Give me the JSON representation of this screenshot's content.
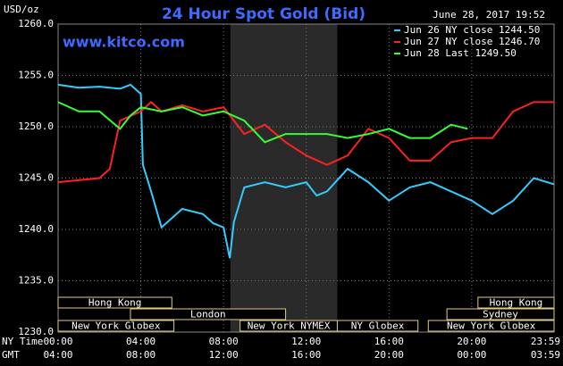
{
  "chart_data": {
    "type": "line",
    "title": "24 Hour Spot Gold (Bid)",
    "subtitle": "www.kitco.com",
    "timestamp": "June 28, 2017 19:52",
    "y_label": "USD/oz",
    "x_label": "NY Time",
    "x2_label": "GMT",
    "background": "#000000",
    "grid": true,
    "legend": "top-right",
    "ylim": [
      1230,
      1260
    ],
    "yticks": [
      {
        "value": 1230,
        "label": "1230.0"
      },
      {
        "value": 1235,
        "label": "1235.0"
      },
      {
        "value": 1240,
        "label": "1240.0"
      },
      {
        "value": 1245,
        "label": "1245.0"
      },
      {
        "value": 1250,
        "label": "1250.0"
      },
      {
        "value": 1255,
        "label": "1255.0"
      },
      {
        "value": 1260,
        "label": "1260.0"
      }
    ],
    "xlim": [
      0,
      23.98
    ],
    "xticks": [
      {
        "value": 0,
        "label": "00:00"
      },
      {
        "value": 4,
        "label": "04:00"
      },
      {
        "value": 8,
        "label": "08:00"
      },
      {
        "value": 12,
        "label": "12:00"
      },
      {
        "value": 16,
        "label": "16:00"
      },
      {
        "value": 20,
        "label": "20:00"
      },
      {
        "value": 23.98,
        "label": "23:59"
      }
    ],
    "x2ticks": [
      {
        "value": 0,
        "label": "04:00"
      },
      {
        "value": 4,
        "label": "08:00"
      },
      {
        "value": 8,
        "label": "12:00"
      },
      {
        "value": 12,
        "label": "16:00"
      },
      {
        "value": 16,
        "label": "20:00"
      },
      {
        "value": 20,
        "label": "00:00"
      },
      {
        "value": 23.98,
        "label": "03:59"
      }
    ],
    "highlight_range": [
      8.33,
      13.5
    ],
    "sessions": [
      [
        {
          "label": "Hong Kong",
          "start": 0,
          "end": 5.5
        },
        {
          "label": "Hong Kong",
          "start": 20.3,
          "end": 23.98
        }
      ],
      [
        {
          "label": "London",
          "start": 3.5,
          "end": 11.0
        },
        {
          "label": "Sydney",
          "start": 18.8,
          "end": 23.98
        }
      ],
      [
        {
          "label": "New York Globex",
          "start": 0,
          "end": 5.6
        },
        {
          "label": "New York NYMEX",
          "start": 8.8,
          "end": 13.5
        },
        {
          "label": "NY Globex",
          "start": 13.5,
          "end": 17.4
        },
        {
          "label": "New York Globex",
          "start": 17.9,
          "end": 23.98
        }
      ]
    ],
    "series": [
      {
        "name": "Jun 26 NY close 1244.50",
        "color": "#33ccff",
        "x": [
          0,
          1,
          2,
          3,
          3.5,
          4,
          4.1,
          4.5,
          5,
          5.5,
          6,
          7,
          7.5,
          8,
          8.3,
          8.5,
          9,
          10,
          11,
          12,
          12.5,
          13,
          14,
          15,
          16,
          17,
          18,
          19,
          20,
          21,
          22,
          23,
          23.98
        ],
        "values": [
          1254.1,
          1253.8,
          1253.9,
          1253.7,
          1254.1,
          1253.2,
          1246.3,
          1243.7,
          1240.2,
          1241.1,
          1242.0,
          1241.5,
          1240.6,
          1240.2,
          1237.2,
          1240.7,
          1244.1,
          1244.6,
          1244.1,
          1244.6,
          1243.3,
          1243.7,
          1245.9,
          1244.6,
          1242.8,
          1244.1,
          1244.6,
          1243.7,
          1242.8,
          1241.5,
          1242.8,
          1245.0,
          1244.4
        ]
      },
      {
        "name": "Jun 27 NY close 1246.70",
        "color": "#ff2020",
        "x": [
          0,
          2,
          2.5,
          3,
          4,
          4.5,
          5,
          6,
          7,
          8,
          9,
          10,
          11,
          12,
          13,
          14,
          15,
          16,
          17,
          18,
          19,
          20,
          21,
          22,
          23,
          23.98
        ],
        "values": [
          1244.6,
          1245.0,
          1245.9,
          1250.6,
          1251.5,
          1252.4,
          1251.5,
          1252.1,
          1251.5,
          1251.9,
          1249.3,
          1250.2,
          1248.5,
          1247.2,
          1246.3,
          1247.2,
          1249.8,
          1248.9,
          1246.7,
          1246.7,
          1248.5,
          1248.9,
          1248.9,
          1251.5,
          1252.4,
          1252.4
        ]
      },
      {
        "name": "Jun 28 Last 1249.50",
        "color": "#33ff33",
        "x": [
          0,
          1,
          2,
          3,
          3.5,
          4,
          5,
          6,
          7,
          8,
          9,
          10,
          11,
          12,
          13,
          14,
          15,
          16,
          17,
          18,
          19,
          19.8
        ],
        "values": [
          1252.4,
          1251.5,
          1251.5,
          1249.8,
          1251.1,
          1251.9,
          1251.5,
          1251.9,
          1251.1,
          1251.5,
          1250.6,
          1248.5,
          1249.3,
          1249.3,
          1249.3,
          1248.9,
          1249.3,
          1249.8,
          1248.9,
          1248.9,
          1250.2,
          1249.8
        ]
      }
    ]
  }
}
